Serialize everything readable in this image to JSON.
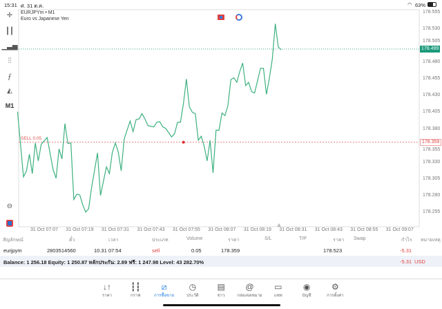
{
  "status_bar": {
    "time": "15:31",
    "date": "ศ. 31 ต.ค.",
    "battery": "63%"
  },
  "chart_header": {
    "symbol": "EURJPYm • M1",
    "description": "Euro vs Japanese Yen"
  },
  "toolbar": {
    "items": [
      "crosshair-icon",
      "candlestick-icon",
      "bar-chart-icon",
      "indicators-icon",
      "function-icon",
      "shapes-icon"
    ],
    "timeframe": "M1"
  },
  "chart_data": {
    "type": "line",
    "line_color": "#3cb07e",
    "ylim": [
      178.245,
      178.565
    ],
    "yticks": [
      "178.555",
      "178.530",
      "178.505",
      "178.480",
      "178.455",
      "178.430",
      "178.405",
      "178.380",
      "178.355",
      "178.330",
      "178.305",
      "178.280",
      "178.255"
    ],
    "xticks": [
      "31 Oct 07:07",
      "31 Oct 07:19",
      "31 Oct 07:31",
      "31 Oct 07:43",
      "31 Oct 07:55",
      "31 Oct 08:07",
      "31 Oct 08:19",
      "31 Oct 08:31",
      "31 Oct 08:43",
      "31 Oct 08:55",
      "31 Oct 09:07"
    ],
    "current_price": "178.499",
    "current_price_color": "#1a9a7a",
    "sell_line": {
      "label": "SELL 0.05",
      "price": "178.359",
      "time": "07:54",
      "color": "#e05050"
    },
    "points": [
      [
        "06:58",
        178.405
      ],
      [
        "07:00",
        178.307
      ],
      [
        "07:01",
        178.316
      ],
      [
        "07:02",
        178.341
      ],
      [
        "07:03",
        178.312
      ],
      [
        "07:04",
        178.358
      ],
      [
        "07:05",
        178.331
      ],
      [
        "07:06",
        178.356
      ],
      [
        "07:08",
        178.366
      ],
      [
        "07:10",
        178.318
      ],
      [
        "07:11",
        178.305
      ],
      [
        "07:12",
        178.349
      ],
      [
        "07:13",
        178.334
      ],
      [
        "07:14",
        178.387
      ],
      [
        "07:15",
        178.357
      ],
      [
        "07:16",
        178.358
      ],
      [
        "07:17",
        178.273
      ],
      [
        "07:18",
        178.281
      ],
      [
        "07:19",
        178.28
      ],
      [
        "07:20",
        178.265
      ],
      [
        "07:21",
        178.254
      ],
      [
        "07:22",
        178.259
      ],
      [
        "07:23",
        178.291
      ],
      [
        "07:25",
        178.343
      ],
      [
        "07:26",
        178.279
      ],
      [
        "07:28",
        178.322
      ],
      [
        "07:29",
        178.312
      ],
      [
        "07:30",
        178.344
      ],
      [
        "07:31",
        178.358
      ],
      [
        "07:32",
        178.344
      ],
      [
        "07:33",
        178.316
      ],
      [
        "07:34",
        178.364
      ],
      [
        "07:36",
        178.391
      ],
      [
        "07:37",
        178.375
      ],
      [
        "07:38",
        178.393
      ],
      [
        "07:39",
        178.394
      ],
      [
        "07:40",
        178.402
      ],
      [
        "07:41",
        178.394
      ],
      [
        "07:42",
        178.384
      ],
      [
        "07:44",
        178.382
      ],
      [
        "07:45",
        178.389
      ],
      [
        "07:46",
        178.39
      ],
      [
        "07:47",
        178.382
      ],
      [
        "07:48",
        178.38
      ],
      [
        "07:50",
        178.367
      ],
      [
        "07:51",
        178.372
      ],
      [
        "07:52",
        178.389
      ],
      [
        "07:53",
        178.389
      ],
      [
        "07:54",
        178.417
      ],
      [
        "07:55",
        178.454
      ],
      [
        "07:56",
        178.412
      ],
      [
        "07:57",
        178.404
      ],
      [
        "07:58",
        178.402
      ],
      [
        "07:59",
        178.362
      ],
      [
        "08:00",
        178.368
      ],
      [
        "08:01",
        178.353
      ],
      [
        "08:02",
        178.331
      ],
      [
        "08:03",
        178.362
      ],
      [
        "08:04",
        178.313
      ],
      [
        "08:05",
        178.377
      ],
      [
        "08:06",
        178.377
      ],
      [
        "08:07",
        178.403
      ],
      [
        "08:08",
        178.399
      ],
      [
        "08:09",
        178.414
      ],
      [
        "08:10",
        178.453
      ],
      [
        "08:11",
        178.456
      ],
      [
        "08:12",
        178.449
      ],
      [
        "08:13",
        178.465
      ],
      [
        "08:14",
        178.478
      ],
      [
        "08:15",
        178.444
      ],
      [
        "08:16",
        178.449
      ],
      [
        "08:17",
        178.435
      ],
      [
        "08:18",
        178.433
      ],
      [
        "08:20",
        178.47
      ],
      [
        "08:21",
        178.47
      ],
      [
        "08:22",
        178.431
      ],
      [
        "08:23",
        178.455
      ],
      [
        "08:24",
        178.484
      ],
      [
        "08:25",
        178.537
      ],
      [
        "08:26",
        178.502
      ],
      [
        "08:27",
        178.498
      ]
    ]
  },
  "table": {
    "headers": [
      "สัญลักษณ์",
      "ตั๋ว",
      "เวลา",
      "ประเภท",
      "Volume",
      "ราคา",
      "S/L",
      "T/P",
      "ราคา",
      "Swap",
      "กำไร",
      "หมายเหตุ"
    ],
    "rows": [
      {
        "symbol": "eurjpym",
        "ticket": "2803514560",
        "time": "10.31 07:54",
        "type": "sell",
        "volume": "0.05",
        "open_price": "178.359",
        "sl": "",
        "tp": "",
        "price": "178.523",
        "swap": "",
        "profit": "-5.31",
        "comment": ""
      }
    ],
    "summary": "Balance: 1 256.18 Equity: 1 250.87 หลักประกัน: 2.89 ฟรี: 1 247.98 Level: 43 282.70%",
    "total_profit": "-5.31",
    "currency": "USD"
  },
  "tabs": [
    {
      "label": "ราคา",
      "icon": "arrows-updown-icon"
    },
    {
      "label": "กราฟ",
      "icon": "candlestick-icon"
    },
    {
      "label": "การซื้อขาย",
      "icon": "trade-chart-icon",
      "active": true
    },
    {
      "label": "ประวัติ",
      "icon": "history-icon"
    },
    {
      "label": "ข่าว",
      "icon": "news-icon"
    },
    {
      "label": "กล่องจดหมาย",
      "icon": "mail-at-icon"
    },
    {
      "label": "แชท",
      "icon": "chat-icon"
    },
    {
      "label": "บัญชี",
      "icon": "account-icon"
    },
    {
      "label": "การตั้งค่า",
      "icon": "settings-icon"
    }
  ]
}
